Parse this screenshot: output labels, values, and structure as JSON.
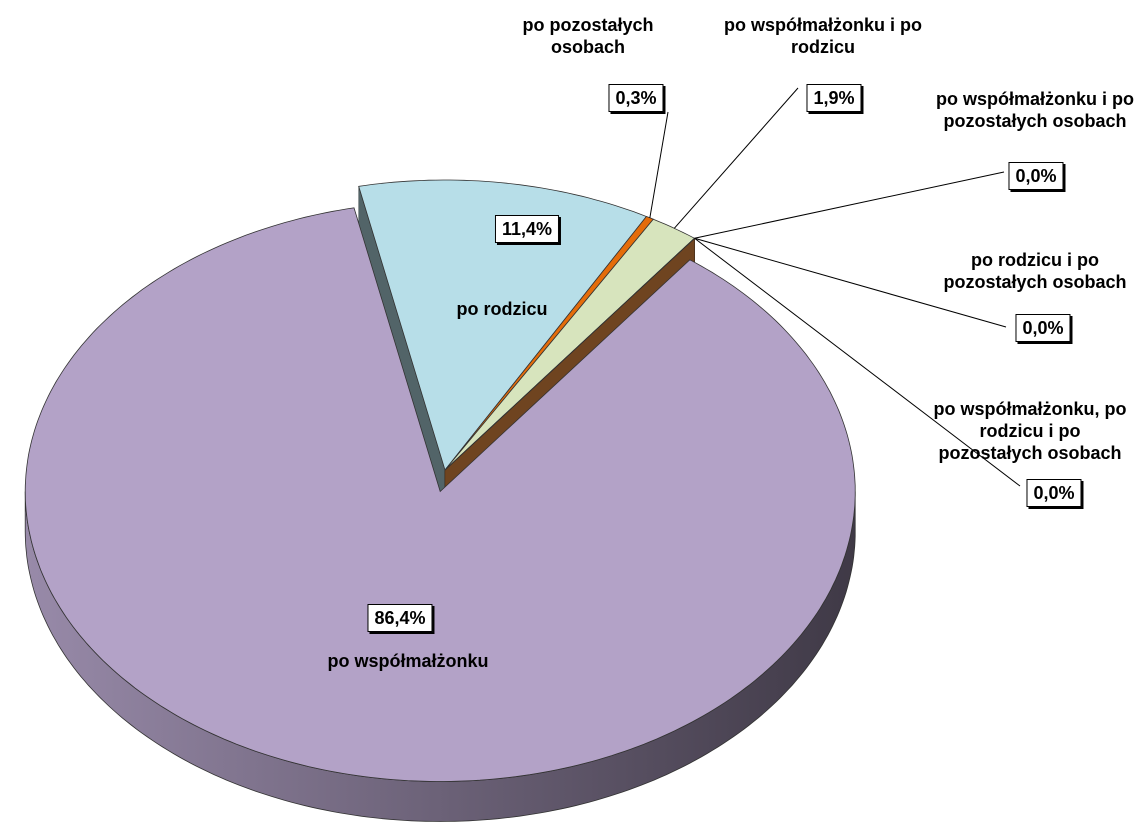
{
  "chart_data": {
    "type": "pie",
    "categories": [
      "po współmałżonku",
      "po rodzicu",
      "po pozostałych osobach",
      "po współmałżonku i po rodzicu",
      "po współmałżonku i po pozostałych osobach",
      "po rodzicu i po pozostałych osobach",
      "po współmałżonku, po rodzicu i po pozostałych osobach"
    ],
    "values": [
      86.4,
      11.4,
      0.3,
      1.9,
      0,
      0,
      0
    ],
    "value_labels": [
      "86,4%",
      "11,4%",
      "0,3%",
      "1,9%",
      "0,0%",
      "0,0%",
      "0,0%"
    ],
    "colors": [
      "#b3a2c7",
      "#b7dee8",
      "#e46c0a",
      "#d7e4bd",
      "#8064a2",
      "#4bacc6",
      "#f79646"
    ]
  }
}
